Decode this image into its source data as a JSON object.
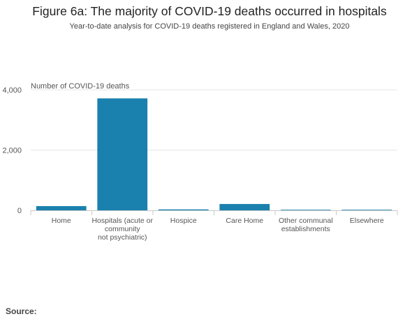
{
  "title": "Figure 6a: The majority of COVID-19 deaths occurred in hospitals",
  "subtitle": "Year-to-date analysis for COVID-19 deaths registered in England and Wales, 2020",
  "source_label": "Source:",
  "colors": {
    "bar": "#1a80ad",
    "grid": "#e5e5e5",
    "axis": "#c8c8c8",
    "text": "#555555"
  },
  "chart_data": {
    "type": "bar",
    "ylabel": "Number of COVID-19 deaths",
    "xlabel": "",
    "ylim": [
      0,
      4000
    ],
    "yticks": [
      0,
      2000,
      4000
    ],
    "ytick_labels": [
      "0",
      "2,000",
      "4,000"
    ],
    "grid": true,
    "categories": [
      [
        "Home"
      ],
      [
        "Hospitals (acute or",
        "community",
        "not psychiatric)"
      ],
      [
        "Hospice"
      ],
      [
        "Care Home"
      ],
      [
        "Other communal",
        "establishments"
      ],
      [
        "Elsewhere"
      ]
    ],
    "values": [
      140,
      3716,
      30,
      210,
      2,
      2
    ]
  }
}
